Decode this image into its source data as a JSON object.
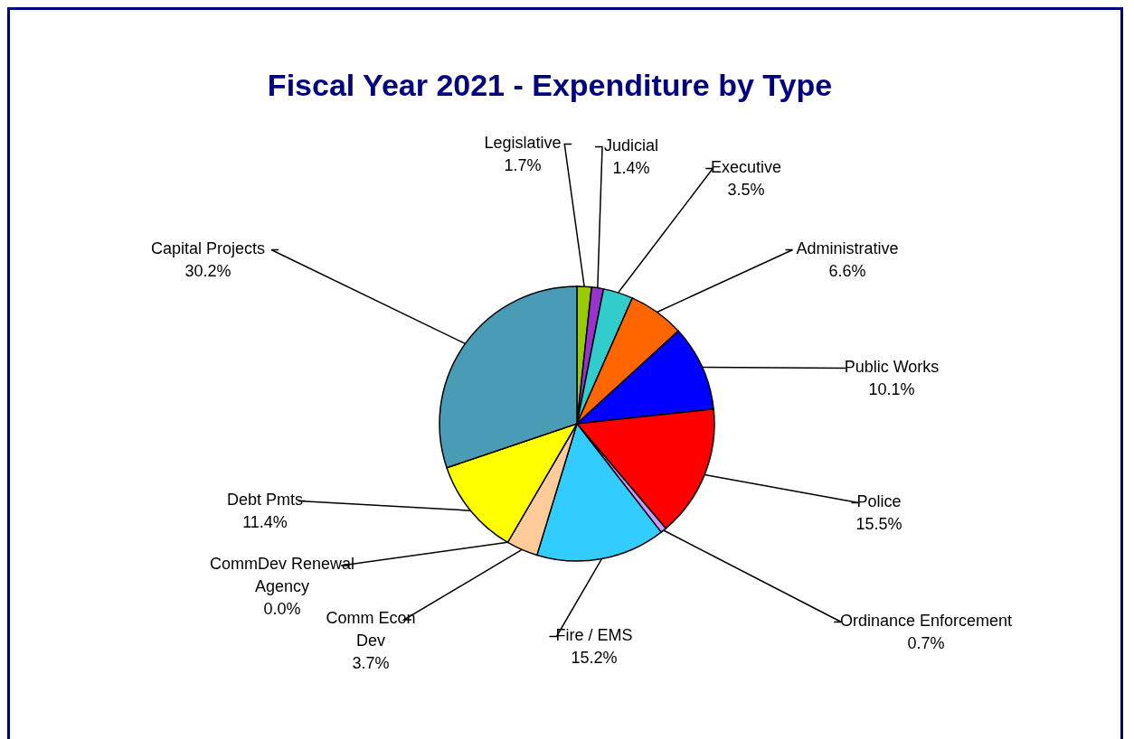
{
  "chart_data": {
    "type": "pie",
    "title": "Fiscal Year 2021 - Expenditure by Type",
    "categories": [
      "Legislative",
      "Judicial",
      "Executive",
      "Administrative",
      "Public Works",
      "Police",
      "Ordinance Enforcement",
      "Fire / EMS",
      "Comm Econ Dev",
      "CommDev Renewal Agency",
      "Debt Pmts",
      "Capital Projects"
    ],
    "values": [
      1.7,
      1.4,
      3.5,
      6.6,
      10.1,
      15.5,
      0.7,
      15.2,
      3.7,
      0.0,
      11.4,
      30.2
    ],
    "value_labels": [
      "1.7%",
      "1.4%",
      "3.5%",
      "6.6%",
      "10.1%",
      "15.5%",
      "0.7%",
      "15.2%",
      "3.7%",
      "0.0%",
      "11.4%",
      "30.2%"
    ],
    "colors": [
      "#99cc00",
      "#9933cc",
      "#33cccc",
      "#ff6600",
      "#0000ff",
      "#ff0000",
      "#cc99ff",
      "#33ccff",
      "#ffcc99",
      "#ff99cc",
      "#ffff00",
      "#4a9bb5"
    ],
    "legend": false
  }
}
